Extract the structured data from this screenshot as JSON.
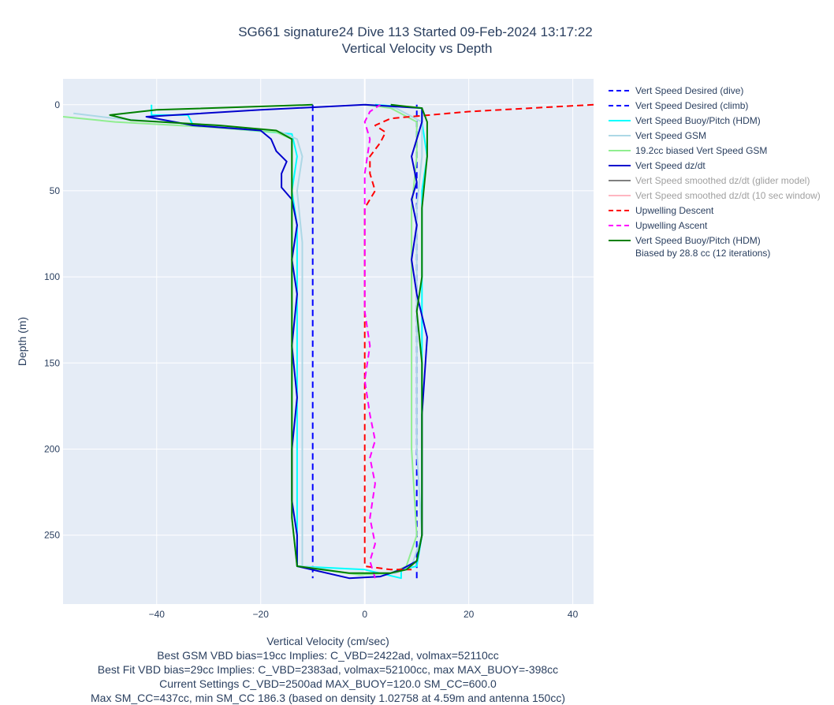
{
  "chart_data": {
    "type": "line",
    "title": "SG661 signature24 Dive 113 Started 09-Feb-2024 13:17:22",
    "subtitle": "Vertical Velocity vs Depth",
    "xlabel": "Vertical Velocity (cm/sec)",
    "ylabel": "Depth (m)",
    "xlim": [
      -58,
      44
    ],
    "ylim": [
      290,
      -15
    ],
    "y_reversed": true,
    "x_ticks": [
      -40,
      -20,
      0,
      20,
      40
    ],
    "x_tick_labels": [
      "−40",
      "−20",
      "0",
      "20",
      "40"
    ],
    "y_ticks": [
      0,
      50,
      100,
      150,
      200,
      250
    ],
    "y_tick_labels": [
      "0",
      "50",
      "100",
      "150",
      "200",
      "250"
    ],
    "grid": true,
    "legend_position": "right",
    "notes": [
      "Best GSM VBD bias=19cc Implies: C_VBD=2422ad, volmax=52110cc",
      "Best Fit VBD bias=29cc Implies: C_VBD=2383ad, volmax=52100cc, max MAX_BUOY=-398cc",
      "Current Settings C_VBD=2500ad MAX_BUOY=120.0 SM_CC=600.0",
      "Max SM_CC=437cc, min SM_CC 186.3 (based on density 1.02758 at 4.59m and antenna 150cc)"
    ],
    "series": [
      {
        "name": "Vert Speed Desired (dive)",
        "color": "#0000ff",
        "dash": "dash",
        "dim": false,
        "points": [
          [
            -10,
            0
          ],
          [
            -10,
            275
          ]
        ]
      },
      {
        "name": "Vert Speed Desired (climb)",
        "color": "#0000ff",
        "dash": "dash",
        "dim": false,
        "points": [
          [
            10,
            275
          ],
          [
            10,
            0
          ]
        ]
      },
      {
        "name": "Vert Speed Buoy/Pitch (HDM)",
        "color": "#00ffff",
        "dash": "solid",
        "dim": false,
        "points": [
          [
            -41,
            0
          ],
          [
            -41,
            6
          ],
          [
            -34,
            6
          ],
          [
            -33,
            12
          ],
          [
            -14,
            17
          ],
          [
            -13,
            30
          ],
          [
            -14,
            50
          ],
          [
            -13,
            70
          ],
          [
            -13,
            100
          ],
          [
            -13,
            150
          ],
          [
            -13,
            200
          ],
          [
            -13,
            250
          ],
          [
            -13,
            268
          ],
          [
            0,
            270
          ],
          [
            7,
            275
          ],
          [
            7,
            270
          ],
          [
            10,
            268
          ],
          [
            11,
            250
          ],
          [
            11,
            200
          ],
          [
            11,
            150
          ],
          [
            11,
            100
          ],
          [
            11,
            50
          ],
          [
            12,
            30
          ],
          [
            11,
            10
          ],
          [
            11,
            2
          ],
          [
            2,
            0
          ]
        ]
      },
      {
        "name": "Vert Speed GSM",
        "color": "#add8e6",
        "dash": "solid",
        "dim": false,
        "points": [
          [
            -56,
            5
          ],
          [
            -48,
            8
          ],
          [
            -30,
            12
          ],
          [
            -16,
            16
          ],
          [
            -13,
            20
          ],
          [
            -12,
            30
          ],
          [
            -13,
            50
          ],
          [
            -12,
            80
          ],
          [
            -12,
            120
          ],
          [
            -12,
            160
          ],
          [
            -12,
            200
          ],
          [
            -12,
            240
          ],
          [
            -12,
            268
          ],
          [
            -1,
            273
          ],
          [
            6,
            272
          ],
          [
            9,
            268
          ],
          [
            11,
            250
          ],
          [
            10,
            200
          ],
          [
            10,
            150
          ],
          [
            10,
            100
          ],
          [
            10,
            60
          ],
          [
            11,
            30
          ],
          [
            11,
            10
          ],
          [
            6,
            2
          ],
          [
            0,
            0
          ]
        ]
      },
      {
        "name": "19.2cc biased Vert Speed GSM",
        "color": "#90ee90",
        "dash": "solid",
        "dim": false,
        "points": [
          [
            -58,
            7
          ],
          [
            -48,
            10
          ],
          [
            -30,
            13
          ],
          [
            -17,
            16
          ],
          [
            -14,
            20
          ],
          [
            -14,
            30
          ],
          [
            -14,
            50
          ],
          [
            -14,
            80
          ],
          [
            -14,
            120
          ],
          [
            -14,
            160
          ],
          [
            -14,
            200
          ],
          [
            -14,
            240
          ],
          [
            -13,
            268
          ],
          [
            -1,
            273
          ],
          [
            5,
            272
          ],
          [
            8,
            268
          ],
          [
            10,
            250
          ],
          [
            9,
            200
          ],
          [
            9,
            150
          ],
          [
            9,
            100
          ],
          [
            9,
            60
          ],
          [
            10,
            30
          ],
          [
            10,
            10
          ],
          [
            5,
            2
          ],
          [
            0,
            0
          ]
        ]
      },
      {
        "name": "Vert Speed dz/dt",
        "color": "#0000cd",
        "dash": "solid",
        "dim": false,
        "points": [
          [
            0,
            0
          ],
          [
            -20,
            3
          ],
          [
            -42,
            7
          ],
          [
            -33,
            12
          ],
          [
            -20,
            15
          ],
          [
            -18,
            20
          ],
          [
            -17,
            27
          ],
          [
            -15,
            33
          ],
          [
            -16,
            40
          ],
          [
            -16,
            48
          ],
          [
            -14,
            55
          ],
          [
            -13,
            70
          ],
          [
            -14,
            90
          ],
          [
            -13,
            110
          ],
          [
            -14,
            140
          ],
          [
            -13,
            170
          ],
          [
            -14,
            200
          ],
          [
            -14,
            230
          ],
          [
            -13,
            250
          ],
          [
            -13,
            268
          ],
          [
            -3,
            275
          ],
          [
            3,
            274
          ],
          [
            7,
            270
          ],
          [
            10,
            265
          ],
          [
            11,
            250
          ],
          [
            11,
            220
          ],
          [
            11,
            180
          ],
          [
            12,
            135
          ],
          [
            10,
            110
          ],
          [
            9,
            90
          ],
          [
            10,
            70
          ],
          [
            9,
            55
          ],
          [
            10,
            45
          ],
          [
            9,
            30
          ],
          [
            11,
            10
          ],
          [
            11,
            2
          ],
          [
            0,
            0
          ]
        ]
      },
      {
        "name": "Vert Speed smoothed dz/dt (glider model)",
        "color": "#808080",
        "dash": "solid",
        "dim": true,
        "points": []
      },
      {
        "name": "Vert Speed smoothed dz/dt (10 sec window)",
        "color": "#ffb6c1",
        "dash": "solid",
        "dim": true,
        "points": []
      },
      {
        "name": "Upwelling Descent",
        "color": "#ff0000",
        "dash": "dash",
        "dim": false,
        "points": [
          [
            44,
            0
          ],
          [
            38,
            1
          ],
          [
            20,
            4
          ],
          [
            5,
            8
          ],
          [
            2,
            12
          ],
          [
            4,
            16
          ],
          [
            3,
            22
          ],
          [
            1,
            30
          ],
          [
            1,
            40
          ],
          [
            2,
            50
          ],
          [
            0,
            60
          ],
          [
            0,
            80
          ],
          [
            0,
            100
          ],
          [
            0,
            130
          ],
          [
            0,
            160
          ],
          [
            0,
            190
          ],
          [
            0,
            230
          ],
          [
            0,
            260
          ],
          [
            0,
            268
          ],
          [
            5,
            270
          ],
          [
            9,
            270
          ]
        ]
      },
      {
        "name": "Upwelling Ascent",
        "color": "#ff00ff",
        "dash": "dash",
        "dim": false,
        "points": [
          [
            2,
            275
          ],
          [
            1,
            265
          ],
          [
            2,
            255
          ],
          [
            1,
            240
          ],
          [
            2,
            220
          ],
          [
            1,
            205
          ],
          [
            2,
            195
          ],
          [
            1,
            180
          ],
          [
            0,
            160
          ],
          [
            1,
            140
          ],
          [
            0,
            120
          ],
          [
            0,
            100
          ],
          [
            0,
            80
          ],
          [
            0,
            60
          ],
          [
            0,
            40
          ],
          [
            1,
            20
          ],
          [
            0,
            10
          ],
          [
            1,
            4
          ],
          [
            3,
            0
          ]
        ]
      },
      {
        "name": "Vert Speed Buoy/Pitch (HDM)",
        "name2": "Biased by 28.8 cc (12 iterations)",
        "color": "#008000",
        "dash": "solid",
        "dim": false,
        "points": [
          [
            -10,
            0
          ],
          [
            -40,
            3
          ],
          [
            -49,
            6
          ],
          [
            -45,
            9
          ],
          [
            -28,
            12
          ],
          [
            -17,
            15
          ],
          [
            -14,
            20
          ],
          [
            -14,
            30
          ],
          [
            -14,
            50
          ],
          [
            -14,
            80
          ],
          [
            -14,
            120
          ],
          [
            -14,
            160
          ],
          [
            -14,
            200
          ],
          [
            -14,
            240
          ],
          [
            -13,
            268
          ],
          [
            -3,
            272
          ],
          [
            5,
            272
          ],
          [
            8,
            270
          ],
          [
            10,
            265
          ],
          [
            11,
            250
          ],
          [
            11,
            200
          ],
          [
            11,
            150
          ],
          [
            10,
            120
          ],
          [
            11,
            100
          ],
          [
            11,
            80
          ],
          [
            11,
            60
          ],
          [
            12,
            30
          ],
          [
            12,
            10
          ],
          [
            11,
            2
          ],
          [
            5,
            0
          ]
        ]
      }
    ]
  }
}
